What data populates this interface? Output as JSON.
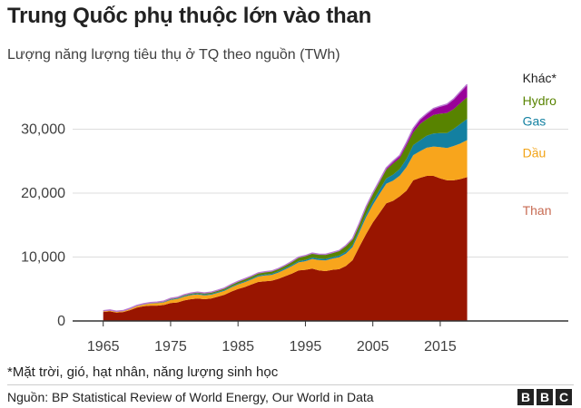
{
  "title": "Trung Quốc phụ thuộc lớn vào than",
  "subtitle": "Lượng năng lượng tiêu thụ ở TQ theo nguồn (TWh)",
  "footnote": "*Mặt trời, gió, hạt nhân, năng lượng sinh học",
  "source": "Nguồn: BP Statistical Review of World Energy, Our World in Data",
  "logo": [
    "B",
    "B",
    "C"
  ],
  "chart_data": {
    "type": "area",
    "stacked": true,
    "title": "Trung Quốc phụ thuộc lớn vào than",
    "subtitle": "Lượng năng lượng tiêu thụ ở TQ theo nguồn (TWh)",
    "xlabel": "",
    "ylabel": "",
    "xlim": [
      1961,
      2034
    ],
    "ylim": [
      0,
      40000
    ],
    "x_ticks": [
      1965,
      1975,
      1985,
      1995,
      2005,
      2015
    ],
    "y_ticks": [
      0,
      10000,
      20000,
      30000
    ],
    "y_tick_labels": [
      "0",
      "10,000",
      "20,000",
      "30,000"
    ],
    "grid": "horizontal",
    "legend": "inline labels at right",
    "x": [
      1965,
      1966,
      1967,
      1968,
      1969,
      1970,
      1971,
      1972,
      1973,
      1974,
      1975,
      1976,
      1977,
      1978,
      1979,
      1980,
      1981,
      1982,
      1983,
      1984,
      1985,
      1986,
      1987,
      1988,
      1989,
      1990,
      1991,
      1992,
      1993,
      1994,
      1995,
      1996,
      1997,
      1998,
      1999,
      2000,
      2001,
      2002,
      2003,
      2004,
      2005,
      2006,
      2007,
      2008,
      2009,
      2010,
      2011,
      2012,
      2013,
      2014,
      2015,
      2016,
      2017,
      2018,
      2019
    ],
    "series": [
      {
        "name": "Than",
        "color": "#991500",
        "label_color": "#c76b53",
        "values": [
          1400,
          1500,
          1300,
          1400,
          1700,
          2100,
          2300,
          2400,
          2400,
          2500,
          2800,
          2900,
          3200,
          3400,
          3500,
          3400,
          3500,
          3800,
          4100,
          4600,
          5000,
          5300,
          5700,
          6100,
          6200,
          6300,
          6600,
          7000,
          7400,
          7900,
          8000,
          8200,
          7900,
          7800,
          8000,
          8100,
          8600,
          9500,
          11600,
          13600,
          15400,
          16900,
          18400,
          18800,
          19500,
          20400,
          22000,
          22400,
          22700,
          22700,
          22300,
          22000,
          22000,
          22200,
          22500
        ]
      },
      {
        "name": "Dầu",
        "color": "#f8a51c",
        "label_color": "#f2a316",
        "values": [
          120,
          130,
          140,
          150,
          170,
          220,
          260,
          320,
          360,
          410,
          480,
          530,
          590,
          640,
          650,
          620,
          600,
          600,
          620,
          650,
          700,
          750,
          790,
          850,
          900,
          900,
          980,
          1070,
          1180,
          1260,
          1350,
          1500,
          1620,
          1670,
          1740,
          1870,
          1920,
          2060,
          2280,
          2640,
          2770,
          2970,
          3080,
          3140,
          3220,
          3690,
          3940,
          4160,
          4400,
          4590,
          4910,
          5070,
          5370,
          5580,
          5800
        ]
      },
      {
        "name": "Gas",
        "color": "#1380a1",
        "label_color": "#1380a1",
        "values": [
          15,
          18,
          20,
          20,
          25,
          30,
          35,
          45,
          55,
          65,
          90,
          110,
          130,
          140,
          150,
          145,
          140,
          135,
          140,
          145,
          150,
          160,
          165,
          175,
          180,
          180,
          185,
          190,
          195,
          200,
          210,
          230,
          240,
          240,
          250,
          290,
          320,
          340,
          390,
          470,
          560,
          670,
          820,
          960,
          1050,
          1260,
          1580,
          1700,
          1890,
          2050,
          2180,
          2340,
          2690,
          3050,
          3300
        ]
      },
      {
        "name": "Hydro",
        "color": "#588300",
        "label_color": "#588300",
        "values": [
          50,
          60,
          55,
          60,
          80,
          90,
          100,
          110,
          120,
          130,
          150,
          160,
          170,
          180,
          190,
          220,
          250,
          270,
          290,
          310,
          340,
          370,
          370,
          380,
          410,
          430,
          430,
          450,
          520,
          580,
          610,
          620,
          620,
          650,
          640,
          670,
          860,
          860,
          870,
          1000,
          1100,
          1200,
          1350,
          1730,
          1710,
          2050,
          1990,
          2560,
          2590,
          2890,
          3030,
          3130,
          3100,
          3270,
          3390
        ]
      },
      {
        "name": "Khác*",
        "color": "#990099",
        "label_color": "#222222",
        "values": [
          5,
          5,
          5,
          5,
          5,
          5,
          5,
          5,
          5,
          5,
          5,
          5,
          5,
          5,
          5,
          5,
          5,
          5,
          5,
          5,
          10,
          10,
          10,
          10,
          10,
          10,
          10,
          10,
          20,
          40,
          50,
          60,
          60,
          70,
          80,
          90,
          100,
          120,
          140,
          170,
          190,
          230,
          290,
          360,
          440,
          520,
          630,
          720,
          860,
          1000,
          1180,
          1370,
          1580,
          1790,
          2010
        ]
      }
    ],
    "label_values": {
      "Khác*": 38000,
      "Hydro": 34500,
      "Gas": 31300,
      "Dầu": 26300,
      "Than": 17300
    }
  }
}
